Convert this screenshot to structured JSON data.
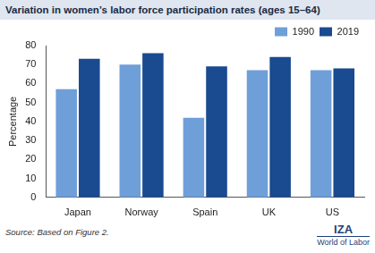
{
  "chart_data": {
    "type": "bar",
    "title": "Variation in women’s labor force participation rates (ages 15–64)",
    "y_label": "Percentage",
    "categories": [
      "Japan",
      "Norway",
      "Spain",
      "UK",
      "US"
    ],
    "series": [
      {
        "name": "1990",
        "color": "#6f9fd8",
        "values": [
          57,
          70,
          42,
          67,
          67
        ]
      },
      {
        "name": "2019",
        "color": "#1a4a8f",
        "values": [
          73,
          76,
          69,
          74,
          68
        ]
      }
    ],
    "ylim": [
      0,
      80
    ],
    "yticks": [
      0,
      10,
      20,
      30,
      40,
      50,
      60,
      70,
      80
    ],
    "grid": false,
    "legend": "upper right",
    "source": "Source: Based on Figure 2.",
    "annotations": [
      "IZA",
      "World of Labor"
    ]
  }
}
